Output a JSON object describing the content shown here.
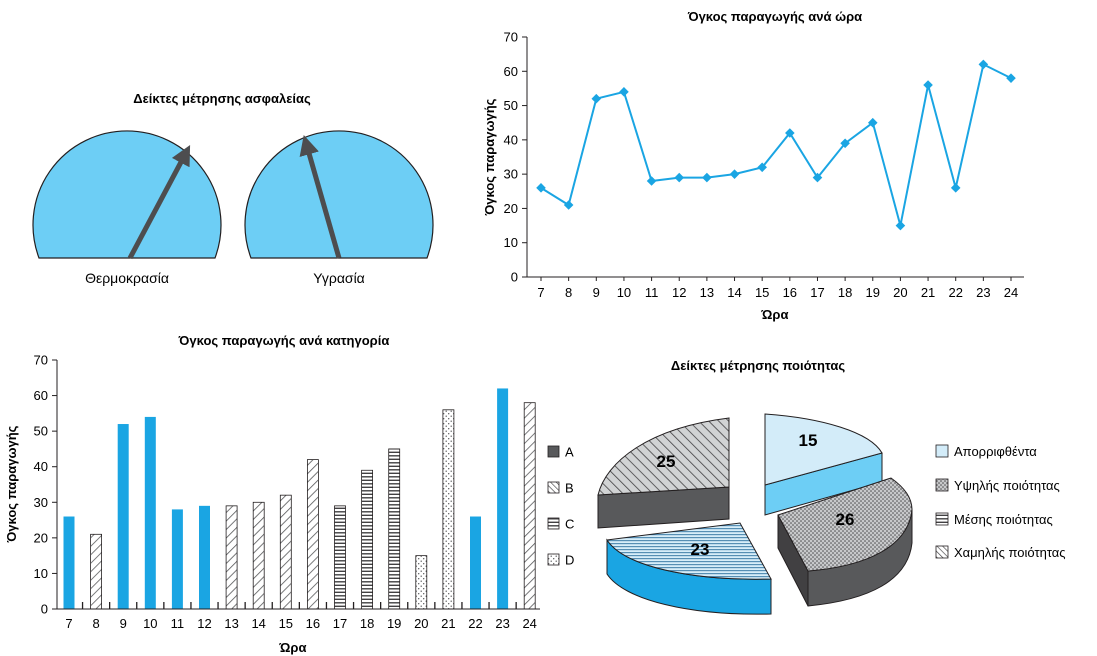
{
  "colors": {
    "blue": "#1aa5e3",
    "light_blue": "#64ccf4",
    "gauge_fill": "#6dcef5",
    "needle": "#4d4d4f",
    "dark": "#58595b",
    "text": "#231f20",
    "slice_light": "#d3ecf9"
  },
  "chart_data": [
    {
      "type": "gauge",
      "title": "Δείκτες μέτρησης ασφαλείας",
      "gauges": [
        {
          "label": "Θερμοκρασία",
          "needle_angle_deg": 62
        },
        {
          "label": "Υγρασία",
          "needle_angle_deg": 106
        }
      ]
    },
    {
      "type": "line",
      "title": "Όγκος παραγωγής ανά ώρα",
      "xlabel": "Ώρα",
      "ylabel": "Όγκος παραγωγής",
      "x": [
        "7",
        "8",
        "9",
        "10",
        "11",
        "12",
        "13",
        "14",
        "15",
        "16",
        "17",
        "18",
        "19",
        "20",
        "21",
        "22",
        "23",
        "24"
      ],
      "values": [
        26,
        21,
        52,
        54,
        28,
        29,
        29,
        30,
        32,
        42,
        29,
        39,
        45,
        15,
        56,
        26,
        62,
        58
      ],
      "ylim": [
        0,
        70
      ],
      "yticks": [
        "0",
        "10",
        "20",
        "30",
        "40",
        "50",
        "60",
        "70"
      ],
      "grid": false,
      "marker": "diamond"
    },
    {
      "type": "bar",
      "title": "Όγκος παραγωγής ανά κατηγορία",
      "xlabel": "Ώρα",
      "ylabel": "Όγκος παραγωγής",
      "categories": [
        "7",
        "8",
        "9",
        "10",
        "11",
        "12",
        "13",
        "14",
        "15",
        "16",
        "17",
        "18",
        "19",
        "20",
        "21",
        "22",
        "23",
        "24"
      ],
      "values": [
        26,
        21,
        52,
        54,
        28,
        29,
        29,
        30,
        32,
        42,
        29,
        39,
        45,
        15,
        56,
        26,
        62,
        58
      ],
      "bar_category": [
        "A",
        "B",
        "A",
        "A",
        "A",
        "A",
        "B",
        "B",
        "B",
        "B",
        "C",
        "C",
        "C",
        "D",
        "D",
        "A",
        "A",
        "B"
      ],
      "ylim": [
        0,
        70
      ],
      "yticks": [
        "0",
        "10",
        "20",
        "30",
        "40",
        "50",
        "60",
        "70"
      ],
      "legend": [
        "A",
        "B",
        "C",
        "D"
      ],
      "legend_position": "right"
    },
    {
      "type": "pie",
      "title": "Δείκτες μέτρησης ποιότητας",
      "slices": [
        {
          "label": "Απορριφθέντα",
          "value": 15
        },
        {
          "label": "Υψηλής ποιότητας",
          "value": 26
        },
        {
          "label": "Μέσης ποιότητας",
          "value": 23
        },
        {
          "label": "Χαμηλής ποιότητας",
          "value": 25
        }
      ],
      "legend_position": "right",
      "style": "3d-exploded"
    }
  ]
}
